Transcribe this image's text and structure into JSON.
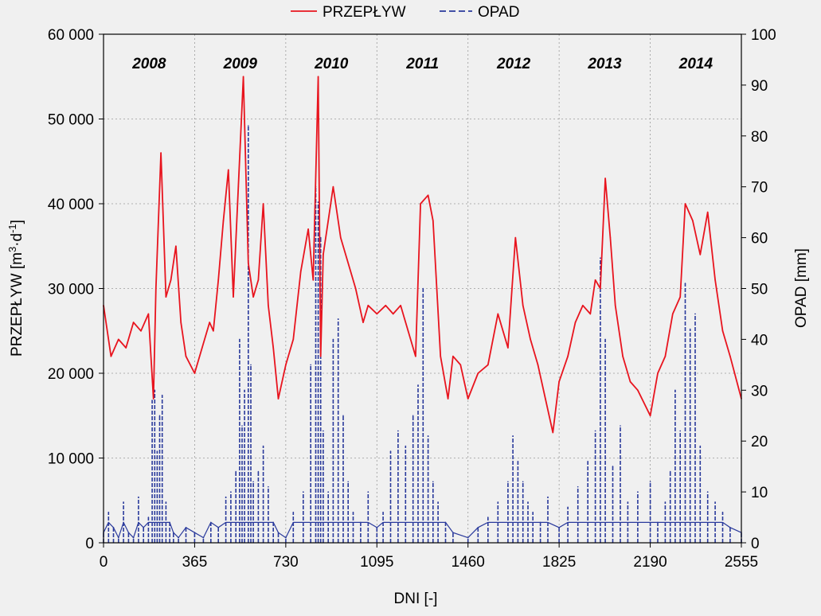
{
  "chart_data": {
    "type": "line",
    "title": "",
    "xlabel": "DNI [-]",
    "ylabel_left": "PRZEPŁYW [m",
    "ylabel_left_sup1": "3",
    "ylabel_left_mid": "·d",
    "ylabel_left_sup2": "-1",
    "ylabel_left_end": "]",
    "ylabel_right": "OPAD [mm]",
    "xlim": [
      0,
      2555
    ],
    "ylim_left": [
      0,
      60000
    ],
    "ylim_right": [
      0,
      100
    ],
    "x_ticks": [
      0,
      365,
      730,
      1095,
      1460,
      1825,
      2190,
      2555
    ],
    "x_tick_labels": [
      "0",
      "365",
      "730",
      "1095",
      "1460",
      "1825",
      "2190",
      "2555"
    ],
    "y_left_ticks": [
      0,
      10000,
      20000,
      30000,
      40000,
      50000,
      60000
    ],
    "y_left_tick_labels": [
      "0",
      "10 000",
      "20 000",
      "30 000",
      "40 000",
      "50 000",
      "60 000"
    ],
    "y_right_ticks": [
      0,
      10,
      20,
      30,
      40,
      50,
      60,
      70,
      80,
      90,
      100
    ],
    "y_right_tick_labels": [
      "0",
      "10",
      "20",
      "30",
      "40",
      "50",
      "60",
      "70",
      "80",
      "90",
      "100"
    ],
    "grid": true,
    "legend_position": "top-center",
    "year_labels": [
      {
        "text": "2008",
        "x": 183
      },
      {
        "text": "2009",
        "x": 548
      },
      {
        "text": "2010",
        "x": 913
      },
      {
        "text": "2011",
        "x": 1278
      },
      {
        "text": "2012",
        "x": 1643
      },
      {
        "text": "2013",
        "x": 2008
      },
      {
        "text": "2014",
        "x": 2373
      }
    ],
    "series": [
      {
        "name": "PRZEPŁYW",
        "axis": "left",
        "color": "#e8141e",
        "style": "solid",
        "x": [
          0,
          30,
          60,
          90,
          120,
          150,
          180,
          200,
          210,
          230,
          250,
          270,
          290,
          310,
          330,
          365,
          395,
          425,
          440,
          460,
          480,
          500,
          520,
          540,
          560,
          580,
          600,
          620,
          640,
          660,
          680,
          700,
          730,
          760,
          790,
          820,
          840,
          860,
          870,
          880,
          900,
          920,
          950,
          980,
          1010,
          1040,
          1060,
          1095,
          1130,
          1160,
          1190,
          1220,
          1250,
          1270,
          1300,
          1320,
          1350,
          1380,
          1400,
          1430,
          1460,
          1500,
          1540,
          1580,
          1620,
          1650,
          1680,
          1710,
          1740,
          1770,
          1800,
          1825,
          1860,
          1890,
          1920,
          1950,
          1970,
          1990,
          2010,
          2030,
          2050,
          2080,
          2110,
          2140,
          2190,
          2220,
          2250,
          2280,
          2310,
          2330,
          2360,
          2390,
          2420,
          2450,
          2480,
          2510,
          2555
        ],
        "y": [
          28000,
          22000,
          24000,
          23000,
          26000,
          25000,
          27000,
          17000,
          30000,
          46000,
          29000,
          31000,
          35000,
          26000,
          22000,
          20000,
          23000,
          26000,
          25000,
          31000,
          38000,
          44000,
          29000,
          42000,
          55000,
          33000,
          29000,
          31000,
          40000,
          28000,
          23000,
          17000,
          21000,
          24000,
          32000,
          37000,
          31000,
          55000,
          22000,
          34000,
          38000,
          42000,
          36000,
          33000,
          30000,
          26000,
          28000,
          27000,
          28000,
          27000,
          28000,
          25000,
          22000,
          40000,
          41000,
          38000,
          22000,
          17000,
          22000,
          21000,
          17000,
          20000,
          21000,
          27000,
          23000,
          36000,
          28000,
          24000,
          21000,
          17000,
          13000,
          19000,
          22000,
          26000,
          28000,
          27000,
          31000,
          30000,
          43000,
          36000,
          28000,
          22000,
          19000,
          18000,
          15000,
          20000,
          22000,
          27000,
          29000,
          40000,
          38000,
          34000,
          39000,
          31000,
          25000,
          22000,
          17000
        ]
      },
      {
        "name": "OPAD",
        "axis": "right",
        "color": "#2a3a9c",
        "style": "dashed",
        "x": [
          0,
          20,
          40,
          60,
          80,
          100,
          120,
          140,
          160,
          180,
          195,
          205,
          215,
          225,
          235,
          250,
          265,
          280,
          300,
          330,
          365,
          400,
          430,
          460,
          490,
          510,
          530,
          545,
          555,
          565,
          580,
          590,
          600,
          620,
          640,
          660,
          680,
          700,
          730,
          760,
          800,
          830,
          850,
          860,
          870,
          880,
          900,
          920,
          940,
          960,
          980,
          1000,
          1030,
          1060,
          1095,
          1120,
          1150,
          1180,
          1210,
          1240,
          1260,
          1280,
          1300,
          1320,
          1340,
          1370,
          1400,
          1460,
          1500,
          1540,
          1580,
          1620,
          1640,
          1660,
          1680,
          1700,
          1720,
          1750,
          1780,
          1825,
          1860,
          1900,
          1940,
          1970,
          1990,
          2010,
          2040,
          2070,
          2100,
          2140,
          2190,
          2220,
          2250,
          2270,
          2290,
          2310,
          2330,
          2350,
          2370,
          2390,
          2420,
          2450,
          2480,
          2510,
          2555
        ],
        "y": [
          2,
          6,
          3,
          1,
          8,
          2,
          1,
          9,
          3,
          5,
          28,
          30,
          18,
          25,
          29,
          8,
          4,
          2,
          1,
          3,
          2,
          1,
          4,
          3,
          9,
          10,
          14,
          40,
          23,
          30,
          82,
          35,
          12,
          14,
          19,
          11,
          4,
          2,
          1,
          6,
          10,
          35,
          70,
          67,
          60,
          22,
          10,
          40,
          44,
          25,
          12,
          6,
          4,
          10,
          3,
          6,
          18,
          22,
          19,
          25,
          31,
          50,
          21,
          12,
          8,
          4,
          2,
          1,
          3,
          5,
          8,
          12,
          21,
          16,
          12,
          8,
          6,
          4,
          9,
          3,
          7,
          11,
          16,
          22,
          56,
          40,
          15,
          23,
          8,
          10,
          12,
          4,
          8,
          14,
          30,
          22,
          51,
          42,
          45,
          19,
          10,
          8,
          6,
          3,
          2
        ]
      }
    ]
  }
}
